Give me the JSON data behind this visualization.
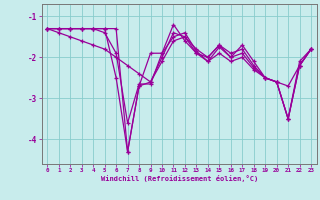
{
  "xlabel": "Windchill (Refroidissement éolien,°C)",
  "background_color": "#c8ecec",
  "line_color": "#990099",
  "grid_color": "#aaaaaa",
  "grid_color2": "#88cccc",
  "yticks": [
    -4,
    -3,
    -2,
    -1
  ],
  "ylim": [
    -4.6,
    -0.7
  ],
  "xlim": [
    -0.5,
    23.5
  ],
  "xticks": [
    0,
    1,
    2,
    3,
    4,
    5,
    6,
    7,
    8,
    9,
    10,
    11,
    12,
    13,
    14,
    15,
    16,
    17,
    18,
    19,
    20,
    21,
    22,
    23
  ],
  "series": [
    [
      -1.3,
      -1.3,
      -1.3,
      -1.3,
      -1.3,
      -1.3,
      -1.3,
      -4.3,
      -2.7,
      -1.9,
      -1.9,
      -1.2,
      -1.6,
      -1.9,
      -2.0,
      -1.7,
      -2.0,
      -1.7,
      -2.1,
      -2.5,
      -2.6,
      -3.5,
      -2.1,
      -1.8
    ],
    [
      -1.3,
      -1.3,
      -1.3,
      -1.3,
      -1.3,
      -1.3,
      -2.5,
      -4.3,
      -2.7,
      -2.6,
      -2.0,
      -1.4,
      -1.5,
      -1.8,
      -2.0,
      -1.7,
      -1.9,
      -1.8,
      -2.2,
      -2.5,
      -2.6,
      -3.5,
      -2.2,
      -1.8
    ],
    [
      -1.3,
      -1.3,
      -1.3,
      -1.3,
      -1.3,
      -1.4,
      -1.9,
      -3.6,
      -2.65,
      -2.65,
      -1.9,
      -1.5,
      -1.4,
      -1.85,
      -2.1,
      -1.75,
      -2.0,
      -1.9,
      -2.25,
      -2.5,
      -2.6,
      -3.5,
      -2.2,
      -1.8
    ],
    [
      -1.3,
      -1.4,
      -1.5,
      -1.6,
      -1.7,
      -1.8,
      -2.0,
      -2.2,
      -2.4,
      -2.6,
      -2.1,
      -1.6,
      -1.5,
      -1.9,
      -2.1,
      -1.9,
      -2.1,
      -2.0,
      -2.3,
      -2.5,
      -2.6,
      -2.7,
      -2.2,
      -1.8
    ]
  ]
}
